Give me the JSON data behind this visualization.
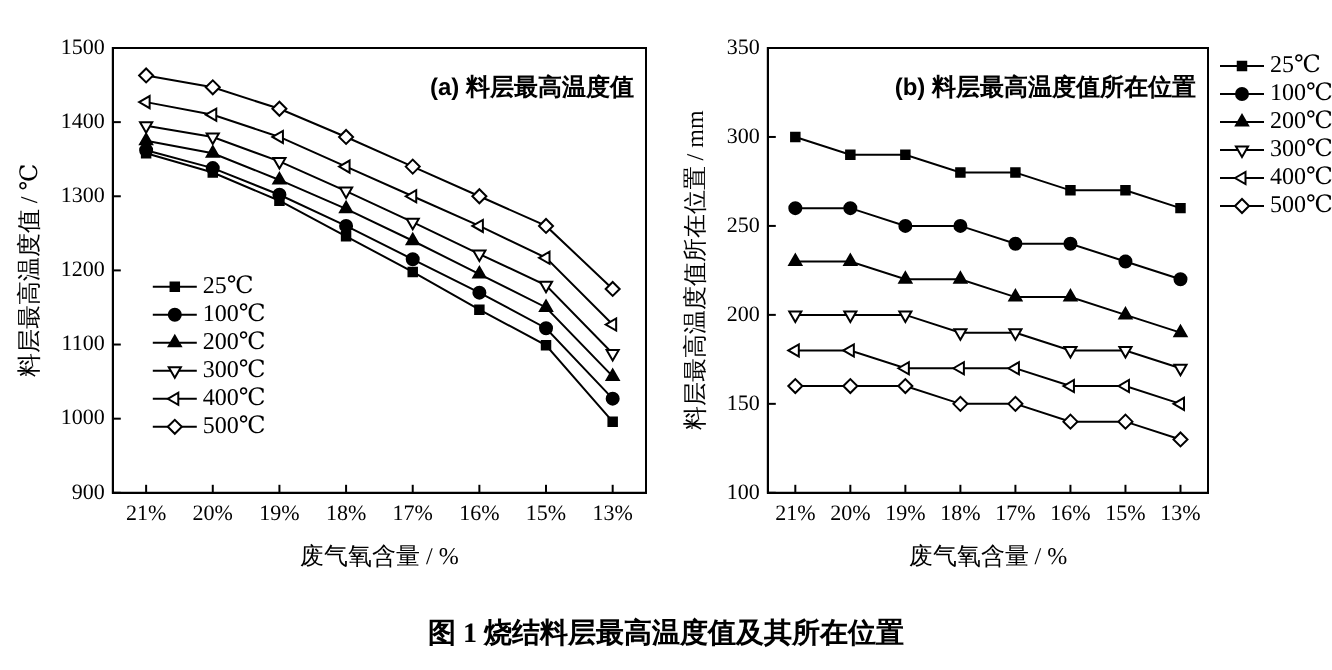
{
  "chart_data": [
    {
      "type": "line",
      "title": "(a) 料层最高温度值",
      "xlabel": "废气氧含量 / %",
      "ylabel": "料层最高温度值 / ℃",
      "categories": [
        "21%",
        "20%",
        "19%",
        "18%",
        "17%",
        "16%",
        "15%",
        "13%"
      ],
      "ylim": [
        900,
        1500
      ],
      "yticks": [
        900,
        1000,
        1100,
        1200,
        1300,
        1400,
        1500
      ],
      "grid": false,
      "legend": "bottom left",
      "line_style": "solid",
      "annotations": [
        "图 1  烧结料层最高温度值及其所在位置"
      ],
      "series": [
        {
          "name": "25℃",
          "color": "#000000",
          "marker": "square",
          "values": [
            1358,
            1332,
            1294,
            1246,
            1198,
            1147,
            1099,
            996
          ]
        },
        {
          "name": "100℃",
          "color": "#000000",
          "marker": "circle",
          "values": [
            1362,
            1338,
            1302,
            1260,
            1215,
            1170,
            1122,
            1027
          ]
        },
        {
          "name": "200℃",
          "color": "#000000",
          "marker": "triangle",
          "values": [
            1375,
            1358,
            1322,
            1283,
            1240,
            1195,
            1150,
            1057
          ]
        },
        {
          "name": "300℃",
          "color": "#000000",
          "marker": "triangle-down",
          "values": [
            1395,
            1380,
            1347,
            1307,
            1265,
            1222,
            1180,
            1088
          ]
        },
        {
          "name": "400℃",
          "color": "#000000",
          "marker": "triangle-left",
          "values": [
            1427,
            1410,
            1380,
            1340,
            1300,
            1260,
            1217,
            1127
          ]
        },
        {
          "name": "500℃",
          "color": "#000000",
          "marker": "diamond",
          "values": [
            1463,
            1447,
            1418,
            1380,
            1340,
            1300,
            1260,
            1175
          ]
        }
      ]
    },
    {
      "type": "line",
      "title": "(b) 料层最高温度值所在位置",
      "xlabel": "废气氧含量 / %",
      "ylabel": "料层最高温度值所在位置 / mm",
      "categories": [
        "21%",
        "20%",
        "19%",
        "18%",
        "17%",
        "16%",
        "15%",
        "13%"
      ],
      "ylim": [
        100,
        350
      ],
      "yticks": [
        100,
        150,
        200,
        250,
        300,
        350
      ],
      "grid": false,
      "legend": "right",
      "line_style": "solid",
      "series": [
        {
          "name": "25℃",
          "color": "#000000",
          "marker": "square",
          "values": [
            300,
            290,
            290,
            280,
            280,
            270,
            270,
            260
          ]
        },
        {
          "name": "100℃",
          "color": "#000000",
          "marker": "circle",
          "values": [
            260,
            260,
            250,
            250,
            240,
            240,
            230,
            220
          ]
        },
        {
          "name": "200℃",
          "color": "#000000",
          "marker": "triangle",
          "values": [
            230,
            230,
            220,
            220,
            210,
            210,
            200,
            190
          ]
        },
        {
          "name": "300℃",
          "color": "#000000",
          "marker": "triangle-down",
          "values": [
            200,
            200,
            200,
            190,
            190,
            180,
            180,
            170
          ]
        },
        {
          "name": "400℃",
          "color": "#000000",
          "marker": "triangle-left",
          "values": [
            180,
            180,
            170,
            170,
            170,
            160,
            160,
            150
          ]
        },
        {
          "name": "500℃",
          "color": "#000000",
          "marker": "diamond",
          "values": [
            160,
            160,
            160,
            150,
            150,
            140,
            140,
            130
          ]
        }
      ]
    }
  ]
}
